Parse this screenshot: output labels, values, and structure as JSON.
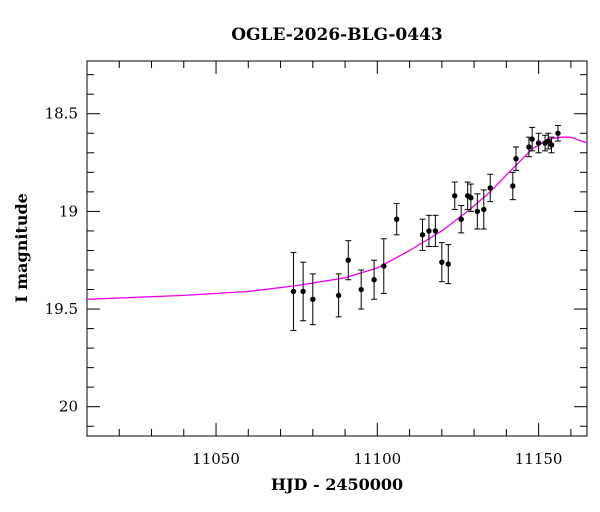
{
  "chart_data": {
    "type": "scatter",
    "title": "OGLE-2026-BLG-0443",
    "xlabel": "HJD - 2450000",
    "ylabel": "I magnitude",
    "xlim": [
      11010,
      11165
    ],
    "ylim": [
      20.15,
      18.23
    ],
    "y_inverted": true,
    "x_ticks": [
      11050,
      11100,
      11150
    ],
    "x_tick_labels": [
      "11050",
      "11100",
      "11150"
    ],
    "y_ticks": [
      18.5,
      19,
      19.5,
      20
    ],
    "y_tick_labels": [
      "18.5",
      "19",
      "19.5",
      "20"
    ],
    "grid": false,
    "series": [
      {
        "kind": "data-with-errorbars",
        "color": "#000000",
        "points": [
          {
            "x": 11074,
            "y": 19.41,
            "err": 0.2
          },
          {
            "x": 11077,
            "y": 19.41,
            "err": 0.15
          },
          {
            "x": 11080,
            "y": 19.45,
            "err": 0.13
          },
          {
            "x": 11088,
            "y": 19.43,
            "err": 0.11
          },
          {
            "x": 11091,
            "y": 19.25,
            "err": 0.1
          },
          {
            "x": 11095,
            "y": 19.4,
            "err": 0.1
          },
          {
            "x": 11099,
            "y": 19.35,
            "err": 0.1
          },
          {
            "x": 11102,
            "y": 19.28,
            "err": 0.14
          },
          {
            "x": 11106,
            "y": 19.04,
            "err": 0.08
          },
          {
            "x": 11114,
            "y": 19.12,
            "err": 0.08
          },
          {
            "x": 11116,
            "y": 19.1,
            "err": 0.08
          },
          {
            "x": 11118,
            "y": 19.1,
            "err": 0.08
          },
          {
            "x": 11120,
            "y": 19.26,
            "err": 0.1
          },
          {
            "x": 11122,
            "y": 19.27,
            "err": 0.1
          },
          {
            "x": 11124,
            "y": 18.92,
            "err": 0.07
          },
          {
            "x": 11126,
            "y": 19.04,
            "err": 0.07
          },
          {
            "x": 11128,
            "y": 18.92,
            "err": 0.07
          },
          {
            "x": 11129,
            "y": 18.93,
            "err": 0.07
          },
          {
            "x": 11131,
            "y": 19.0,
            "err": 0.09
          },
          {
            "x": 11133,
            "y": 18.99,
            "err": 0.1
          },
          {
            "x": 11135,
            "y": 18.88,
            "err": 0.07
          },
          {
            "x": 11142,
            "y": 18.87,
            "err": 0.07
          },
          {
            "x": 11143,
            "y": 18.73,
            "err": 0.06
          },
          {
            "x": 11147,
            "y": 18.67,
            "err": 0.05
          },
          {
            "x": 11148,
            "y": 18.63,
            "err": 0.06
          },
          {
            "x": 11150,
            "y": 18.65,
            "err": 0.05
          },
          {
            "x": 11152,
            "y": 18.65,
            "err": 0.04
          },
          {
            "x": 11153,
            "y": 18.64,
            "err": 0.04
          },
          {
            "x": 11154,
            "y": 18.66,
            "err": 0.04
          },
          {
            "x": 11156,
            "y": 18.6,
            "err": 0.04
          }
        ]
      },
      {
        "kind": "model-curve",
        "color": "#ee00ee",
        "points": [
          {
            "x": 11010,
            "y": 19.45
          },
          {
            "x": 11040,
            "y": 19.43
          },
          {
            "x": 11060,
            "y": 19.41
          },
          {
            "x": 11075,
            "y": 19.38
          },
          {
            "x": 11090,
            "y": 19.34
          },
          {
            "x": 11100,
            "y": 19.29
          },
          {
            "x": 11110,
            "y": 19.2
          },
          {
            "x": 11120,
            "y": 19.1
          },
          {
            "x": 11128,
            "y": 19.0
          },
          {
            "x": 11135,
            "y": 18.9
          },
          {
            "x": 11142,
            "y": 18.78
          },
          {
            "x": 11148,
            "y": 18.68
          },
          {
            "x": 11153,
            "y": 18.63
          },
          {
            "x": 11157,
            "y": 18.62
          },
          {
            "x": 11160,
            "y": 18.62
          },
          {
            "x": 11165,
            "y": 18.65
          }
        ]
      }
    ]
  }
}
